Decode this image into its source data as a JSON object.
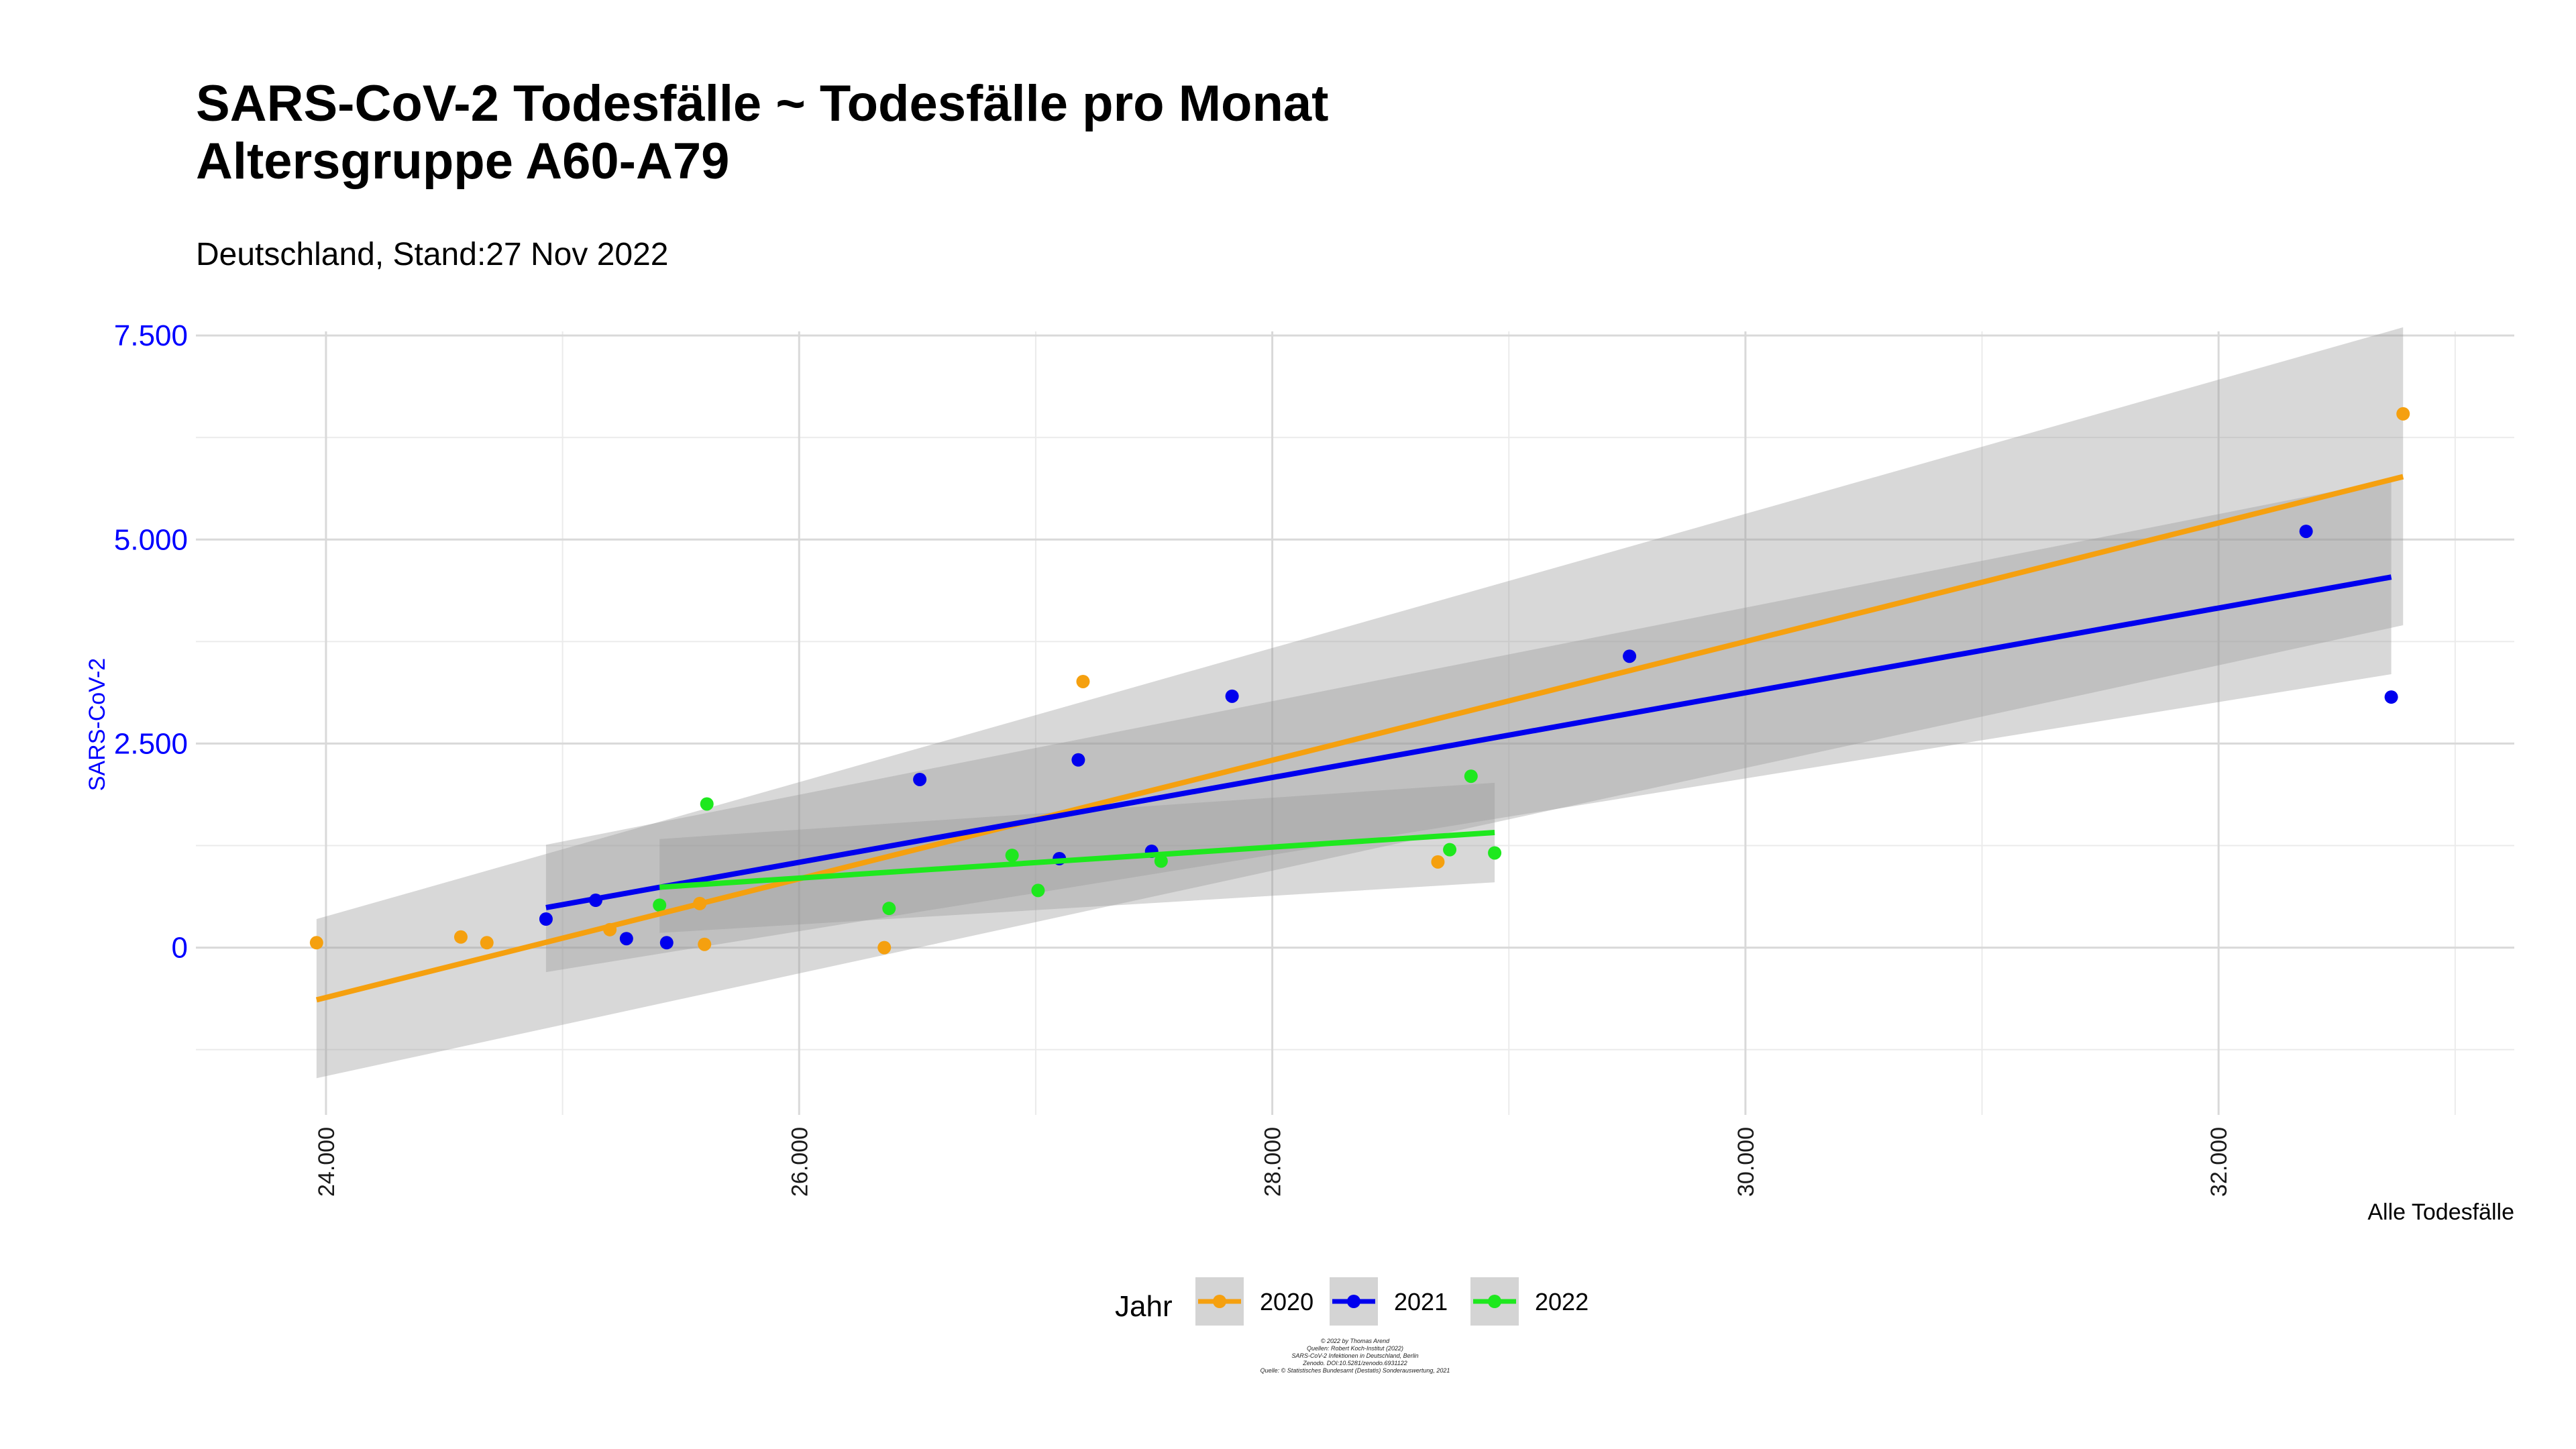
{
  "title_line1": "SARS-CoV-2 Todesfälle ~ Todesfälle pro Monat",
  "title_line2": "Altersgruppe A60-A79",
  "subtitle": "Deutschland, Stand:27 Nov 2022",
  "credits": [
    "© 2022 by Thomas Arend",
    "Quellen: Robert Koch-Institut (2022)",
    "SARS-CoV-2 Infektionen in Deutschland, Berlin",
    "Zenodo. DOI:10.5281/zenodo.6931122",
    "Quelle: © Statistisches Bundesamt (Destatis) Sonderauswertung, 2021"
  ],
  "chart_data": {
    "type": "scatter",
    "xlabel": "Alle Todesfälle",
    "ylabel": "SARS-CoV-2",
    "xlim": [
      23450,
      33250
    ],
    "ylim": [
      -2050,
      7550
    ],
    "x_ticks": [
      24000,
      26000,
      28000,
      30000,
      32000
    ],
    "x_tick_labels": [
      "24.000",
      "26.000",
      "28.000",
      "30.000",
      "32.000"
    ],
    "y_ticks": [
      0,
      2500,
      5000,
      7500
    ],
    "y_tick_labels": [
      "0",
      "2.500",
      "5.000",
      "7.500"
    ],
    "grid": true,
    "legend_title": "Jahr",
    "legend_position": "bottom",
    "series": [
      {
        "name": "2020",
        "color": "#f5a00f",
        "points": [
          [
            23960,
            60
          ],
          [
            24570,
            130
          ],
          [
            24680,
            60
          ],
          [
            25200,
            220
          ],
          [
            25580,
            540
          ],
          [
            25600,
            40
          ],
          [
            26360,
            0
          ],
          [
            27200,
            3260
          ],
          [
            28700,
            1050
          ],
          [
            32780,
            6540
          ]
        ],
        "fit": {
          "x_range": [
            23960,
            32780
          ],
          "y_range": [
            -640,
            5770
          ],
          "ci_lower": [
            -1600,
            3950
          ],
          "ci_upper": [
            350,
            7600
          ]
        }
      },
      {
        "name": "2021",
        "color": "#0000ee",
        "points": [
          [
            24930,
            350
          ],
          [
            25140,
            580
          ],
          [
            25270,
            110
          ],
          [
            25440,
            60
          ],
          [
            26510,
            2060
          ],
          [
            27180,
            2300
          ],
          [
            27100,
            1090
          ],
          [
            27490,
            1180
          ],
          [
            27830,
            3080
          ],
          [
            29510,
            3570
          ],
          [
            32370,
            5100
          ],
          [
            32730,
            3070
          ]
        ],
        "fit": {
          "x_range": [
            24930,
            32730
          ],
          "y_range": [
            490,
            4540
          ],
          "ci_lower": [
            -300,
            3350
          ],
          "ci_upper": [
            1260,
            5730
          ]
        }
      },
      {
        "name": "2022",
        "color": "#1ee81e",
        "points": [
          [
            25410,
            520
          ],
          [
            25610,
            1760
          ],
          [
            26380,
            480
          ],
          [
            26900,
            1130
          ],
          [
            27010,
            700
          ],
          [
            27530,
            1060
          ],
          [
            28750,
            1200
          ],
          [
            28840,
            2100
          ],
          [
            28940,
            1160
          ]
        ],
        "fit": {
          "x_range": [
            25410,
            28940
          ],
          "y_range": [
            740,
            1410
          ],
          "ci_lower": [
            180,
            800
          ],
          "ci_upper": [
            1330,
            2020
          ]
        }
      }
    ]
  }
}
